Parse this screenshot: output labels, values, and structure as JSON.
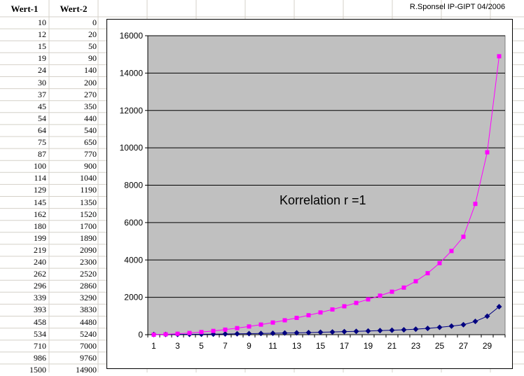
{
  "sheet": {
    "headers": [
      "Wert-1",
      "Wert-2"
    ],
    "credit": "R.Sponsel  IP-GIPT  04/2006",
    "rows": [
      [
        10,
        0
      ],
      [
        12,
        20
      ],
      [
        15,
        50
      ],
      [
        19,
        90
      ],
      [
        24,
        140
      ],
      [
        30,
        200
      ],
      [
        37,
        270
      ],
      [
        45,
        350
      ],
      [
        54,
        440
      ],
      [
        64,
        540
      ],
      [
        75,
        650
      ],
      [
        87,
        770
      ],
      [
        100,
        900
      ],
      [
        114,
        1040
      ],
      [
        129,
        1190
      ],
      [
        145,
        1350
      ],
      [
        162,
        1520
      ],
      [
        180,
        1700
      ],
      [
        199,
        1890
      ],
      [
        219,
        2090
      ],
      [
        240,
        2300
      ],
      [
        262,
        2520
      ],
      [
        296,
        2860
      ],
      [
        339,
        3290
      ],
      [
        393,
        3830
      ],
      [
        458,
        4480
      ],
      [
        534,
        5240
      ],
      [
        710,
        7000
      ],
      [
        986,
        9760
      ],
      [
        1500,
        14900
      ]
    ]
  },
  "chart_data": {
    "type": "line",
    "x": [
      1,
      2,
      3,
      4,
      5,
      6,
      7,
      8,
      9,
      10,
      11,
      12,
      13,
      14,
      15,
      16,
      17,
      18,
      19,
      20,
      21,
      22,
      23,
      24,
      25,
      26,
      27,
      28,
      29,
      30
    ],
    "xticks": [
      1,
      3,
      5,
      7,
      9,
      11,
      13,
      15,
      17,
      19,
      21,
      23,
      25,
      27,
      29
    ],
    "ylim": [
      0,
      16000
    ],
    "yticks": [
      0,
      2000,
      4000,
      6000,
      8000,
      10000,
      12000,
      14000,
      16000
    ],
    "grid": true,
    "plot_bg": "#c0c0c0",
    "annotation": "Korrelation r =1",
    "series": [
      {
        "color": "#000080",
        "marker": "diamond",
        "values": [
          10,
          12,
          15,
          19,
          24,
          30,
          37,
          45,
          54,
          64,
          75,
          87,
          100,
          114,
          129,
          145,
          162,
          180,
          199,
          219,
          240,
          262,
          296,
          339,
          393,
          458,
          534,
          710,
          986,
          1500
        ]
      },
      {
        "color": "#ff00ff",
        "marker": "square",
        "values": [
          0,
          20,
          50,
          90,
          140,
          200,
          270,
          350,
          440,
          540,
          650,
          770,
          900,
          1040,
          1190,
          1350,
          1520,
          1700,
          1890,
          2090,
          2300,
          2520,
          2860,
          3290,
          3830,
          4480,
          5240,
          7000,
          9760,
          14900
        ]
      }
    ]
  }
}
